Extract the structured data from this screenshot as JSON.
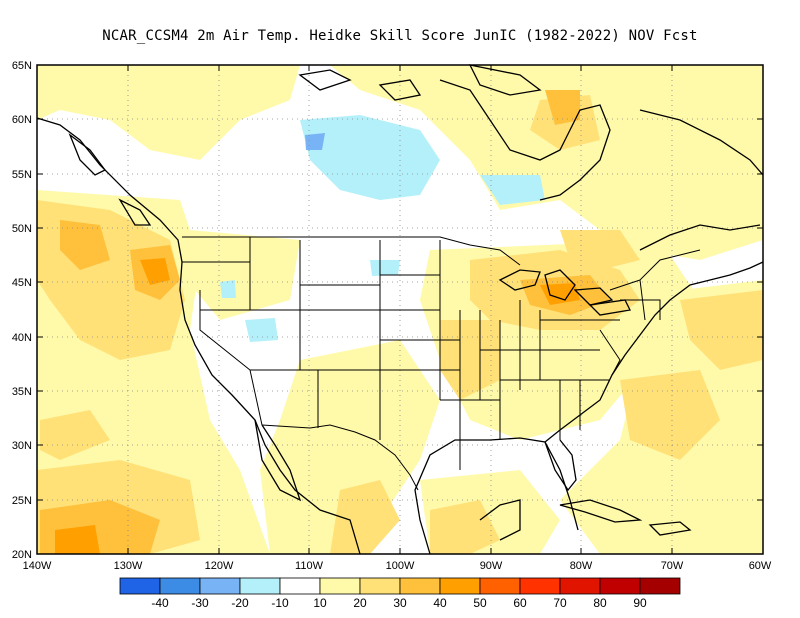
{
  "title": "NCAR_CCSM4  2m Air Temp. Heidke Skill Score JunIC (1982-2022) NOV Fcst",
  "lat_labels": [
    "65N",
    "60N",
    "55N",
    "50N",
    "45N",
    "40N",
    "35N",
    "30N",
    "25N",
    "20N"
  ],
  "lon_labels": [
    "140W",
    "130W",
    "120W",
    "110W",
    "100W",
    "90W",
    "80W",
    "70W",
    "60W"
  ],
  "colorbar": {
    "colors": [
      "#1f64e6",
      "#3c8ce6",
      "#78b4f5",
      "#b4f0fa",
      "#ffffff",
      "#fffaaa",
      "#ffe178",
      "#ffc03c",
      "#ffa000",
      "#ff6000",
      "#ff3200",
      "#e11400",
      "#c00000",
      "#a50000"
    ],
    "labels": [
      "-40",
      "-30",
      "-20",
      "-10",
      "10",
      "20",
      "30",
      "40",
      "50",
      "60",
      "70",
      "80",
      "90"
    ]
  },
  "map_extent": {
    "lon": [
      -140,
      -60
    ],
    "lat": [
      20,
      65
    ]
  }
}
